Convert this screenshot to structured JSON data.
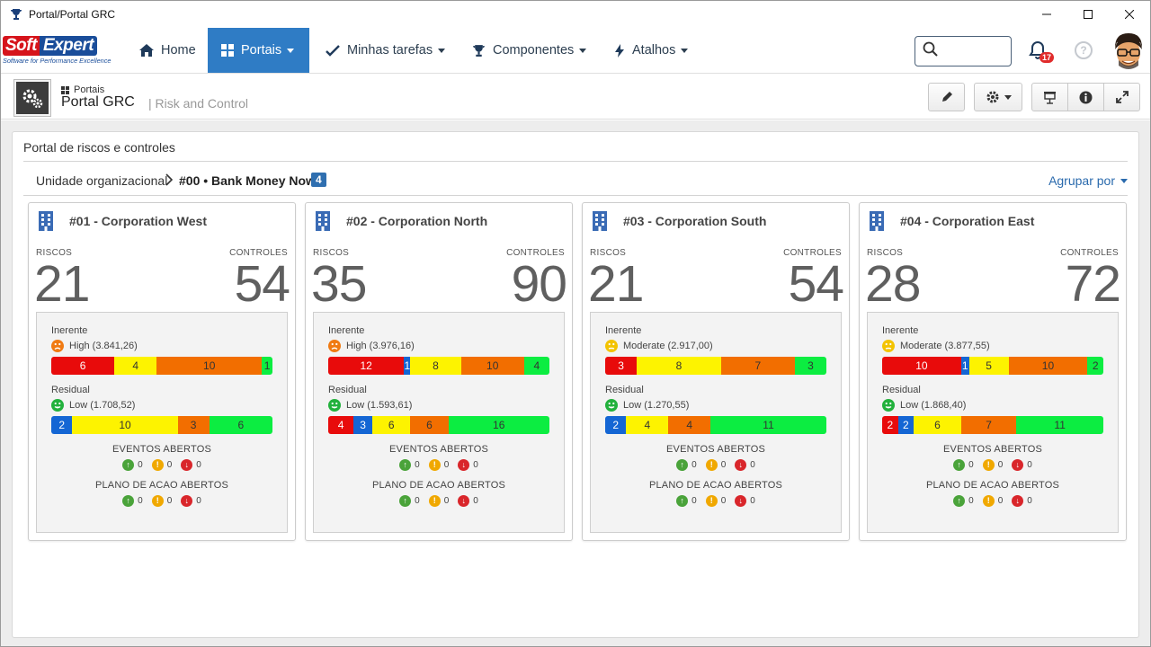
{
  "window": {
    "title": "Portal/Portal GRC"
  },
  "nav": {
    "logo_top_left": "Soft",
    "logo_top_right": "Expert",
    "logo_sub": "Software for Performance Excellence",
    "home": "Home",
    "portals": "Portais",
    "tasks": "Minhas tarefas",
    "components": "Componentes",
    "shortcuts": "Atalhos",
    "search_placeholder": "",
    "notifications": "17",
    "help": "?"
  },
  "subheader": {
    "crumb": "Portais",
    "title": "Portal GRC",
    "subtitle": "| Risk and Control"
  },
  "panel": {
    "title": "Portal de riscos e controles",
    "unit_label": "Unidade organizacional",
    "unit_value": "#00 • Bank Money Now",
    "unit_count": "4",
    "group_by": "Agrupar por"
  },
  "labels": {
    "risks": "RISCOS",
    "controls": "CONTROLES",
    "inherent": "Inerente",
    "residual": "Residual",
    "events": "EVENTOS ABERTOS",
    "action_plans": "PLANO DE ACAO ABERTOS"
  },
  "colors": {
    "accent": "#2f7cc5",
    "red": "#e80b0b",
    "blue": "#1466d4",
    "yellow": "#fdf300",
    "orange": "#f26e00",
    "green": "#0ced41"
  },
  "cards": [
    {
      "name": "#01 - Corporation West",
      "risks": "21",
      "controls": "54",
      "inherent": {
        "level": "High (3.841,26)",
        "face": "orange",
        "segments": [
          {
            "color": "red",
            "value": "6"
          },
          {
            "color": "yellow",
            "value": "4"
          },
          {
            "color": "orange",
            "value": "10"
          },
          {
            "color": "green",
            "value": "1"
          }
        ]
      },
      "residual": {
        "level": "Low (1.708,52)",
        "face": "green",
        "segments": [
          {
            "color": "blue",
            "value": "2"
          },
          {
            "color": "yellow",
            "value": "10"
          },
          {
            "color": "orange",
            "value": "3"
          },
          {
            "color": "green",
            "value": "6"
          }
        ]
      },
      "events": [
        "0",
        "0",
        "0"
      ],
      "plans": [
        "0",
        "0",
        "0"
      ]
    },
    {
      "name": "#02 - Corporation North",
      "risks": "35",
      "controls": "90",
      "inherent": {
        "level": "High (3.976,16)",
        "face": "orange",
        "segments": [
          {
            "color": "red",
            "value": "12"
          },
          {
            "color": "blue",
            "value": "1"
          },
          {
            "color": "yellow",
            "value": "8"
          },
          {
            "color": "orange",
            "value": "10"
          },
          {
            "color": "green",
            "value": "4"
          }
        ]
      },
      "residual": {
        "level": "Low (1.593,61)",
        "face": "green",
        "segments": [
          {
            "color": "red",
            "value": "4"
          },
          {
            "color": "blue",
            "value": "3"
          },
          {
            "color": "yellow",
            "value": "6"
          },
          {
            "color": "orange",
            "value": "6"
          },
          {
            "color": "green",
            "value": "16"
          }
        ]
      },
      "events": [
        "0",
        "0",
        "0"
      ],
      "plans": [
        "0",
        "0",
        "0"
      ]
    },
    {
      "name": "#03 - Corporation South",
      "risks": "21",
      "controls": "54",
      "inherent": {
        "level": "Moderate (2.917,00)",
        "face": "yellow",
        "segments": [
          {
            "color": "red",
            "value": "3"
          },
          {
            "color": "yellow",
            "value": "8"
          },
          {
            "color": "orange",
            "value": "7"
          },
          {
            "color": "green",
            "value": "3"
          }
        ]
      },
      "residual": {
        "level": "Low (1.270,55)",
        "face": "green",
        "segments": [
          {
            "color": "blue",
            "value": "2"
          },
          {
            "color": "yellow",
            "value": "4"
          },
          {
            "color": "orange",
            "value": "4"
          },
          {
            "color": "green",
            "value": "11"
          }
        ]
      },
      "events": [
        "0",
        "0",
        "0"
      ],
      "plans": [
        "0",
        "0",
        "0"
      ]
    },
    {
      "name": "#04 - Corporation East",
      "risks": "28",
      "controls": "72",
      "inherent": {
        "level": "Moderate (3.877,55)",
        "face": "yellow",
        "segments": [
          {
            "color": "red",
            "value": "10"
          },
          {
            "color": "blue",
            "value": "1"
          },
          {
            "color": "yellow",
            "value": "5"
          },
          {
            "color": "orange",
            "value": "10"
          },
          {
            "color": "green",
            "value": "2"
          }
        ]
      },
      "residual": {
        "level": "Low (1.868,40)",
        "face": "green",
        "segments": [
          {
            "color": "red",
            "value": "2"
          },
          {
            "color": "blue",
            "value": "2"
          },
          {
            "color": "yellow",
            "value": "6"
          },
          {
            "color": "orange",
            "value": "7"
          },
          {
            "color": "green",
            "value": "11"
          }
        ]
      },
      "events": [
        "0",
        "0",
        "0"
      ],
      "plans": [
        "0",
        "0",
        "0"
      ]
    }
  ]
}
